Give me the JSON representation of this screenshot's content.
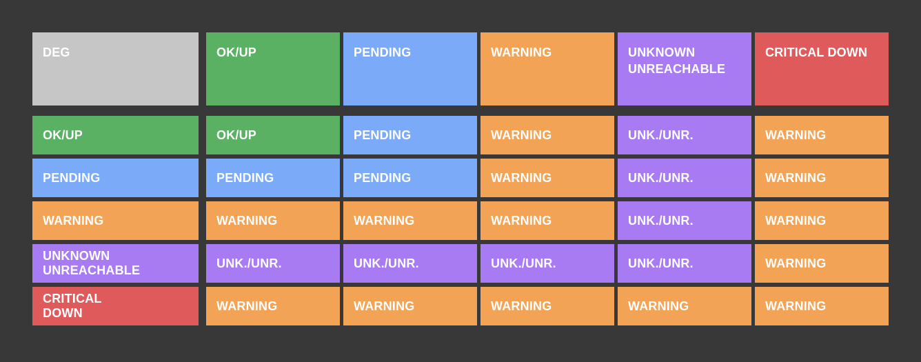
{
  "colors": {
    "background": "#383838",
    "neutral_gray": "#c6c6c6",
    "ok_green": "#5bb163",
    "pending_blue": "#7aaaf8",
    "warning_orange": "#f2a355",
    "unknown_purple": "#a87bf2",
    "critical_red": "#df5a5a",
    "text": "#ffffff"
  },
  "matrix": {
    "corner": {
      "label": "DEG",
      "color": "#c6c6c6"
    },
    "column_headers": [
      {
        "label": "OK/UP",
        "color": "#5bb163"
      },
      {
        "label": "PENDING",
        "color": "#7aaaf8"
      },
      {
        "label": "WARNING",
        "color": "#f2a355"
      },
      {
        "label": "UNKNOWN\nUNREACHABLE",
        "color": "#a87bf2"
      },
      {
        "label": "CRITICAL DOWN",
        "color": "#df5a5a"
      }
    ],
    "rows": [
      {
        "header": {
          "label": "OK/UP",
          "color": "#5bb163"
        },
        "cells": [
          {
            "label": "OK/UP",
            "color": "#5bb163"
          },
          {
            "label": "PENDING",
            "color": "#7aaaf8"
          },
          {
            "label": "WARNING",
            "color": "#f2a355"
          },
          {
            "label": "UNK./UNR.",
            "color": "#a87bf2"
          },
          {
            "label": "WARNING",
            "color": "#f2a355"
          }
        ]
      },
      {
        "header": {
          "label": "PENDING",
          "color": "#7aaaf8"
        },
        "cells": [
          {
            "label": "PENDING",
            "color": "#7aaaf8"
          },
          {
            "label": "PENDING",
            "color": "#7aaaf8"
          },
          {
            "label": "WARNING",
            "color": "#f2a355"
          },
          {
            "label": "UNK./UNR.",
            "color": "#a87bf2"
          },
          {
            "label": "WARNING",
            "color": "#f2a355"
          }
        ]
      },
      {
        "header": {
          "label": "WARNING",
          "color": "#f2a355"
        },
        "cells": [
          {
            "label": "WARNING",
            "color": "#f2a355"
          },
          {
            "label": "WARNING",
            "color": "#f2a355"
          },
          {
            "label": "WARNING",
            "color": "#f2a355"
          },
          {
            "label": "UNK./UNR.",
            "color": "#a87bf2"
          },
          {
            "label": "WARNING",
            "color": "#f2a355"
          }
        ]
      },
      {
        "header": {
          "label": "UNKNOWN\nUNREACHABLE",
          "color": "#a87bf2"
        },
        "cells": [
          {
            "label": "UNK./UNR.",
            "color": "#a87bf2"
          },
          {
            "label": "UNK./UNR.",
            "color": "#a87bf2"
          },
          {
            "label": "UNK./UNR.",
            "color": "#a87bf2"
          },
          {
            "label": "UNK./UNR.",
            "color": "#a87bf2"
          },
          {
            "label": "WARNING",
            "color": "#f2a355"
          }
        ]
      },
      {
        "header": {
          "label": "CRITICAL\nDOWN",
          "color": "#df5a5a"
        },
        "cells": [
          {
            "label": "WARNING",
            "color": "#f2a355"
          },
          {
            "label": "WARNING",
            "color": "#f2a355"
          },
          {
            "label": "WARNING",
            "color": "#f2a355"
          },
          {
            "label": "WARNING",
            "color": "#f2a355"
          },
          {
            "label": "WARNING",
            "color": "#f2a355"
          }
        ]
      }
    ]
  }
}
